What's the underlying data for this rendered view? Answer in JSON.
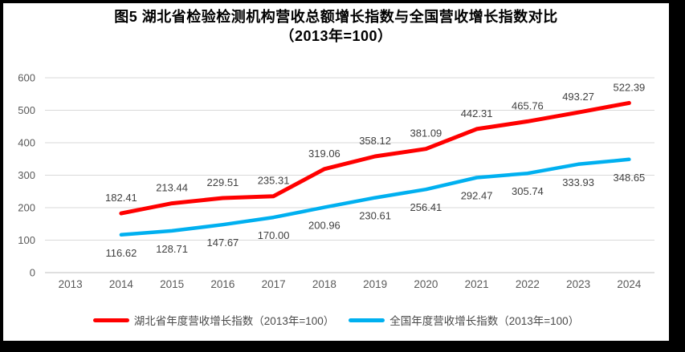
{
  "chart_data": {
    "type": "line",
    "title": "图5 湖北省检验检测机构营收总额增长指数与全国营收增长指数对比",
    "subtitle": "（2013年=100）",
    "categories": [
      "2013",
      "2014",
      "2015",
      "2016",
      "2017",
      "2018",
      "2019",
      "2020",
      "2021",
      "2022",
      "2023",
      "2024"
    ],
    "series": [
      {
        "name": "湖北省年度营收增长指数（2013年=100）",
        "color": "#FF0000",
        "label_position": "above",
        "values": [
          null,
          182.41,
          213.44,
          229.51,
          235.31,
          319.06,
          358.12,
          381.09,
          442.31,
          465.76,
          493.27,
          522.39
        ]
      },
      {
        "name": "全国年度营收增长指数（2013年=100）",
        "color": "#00B0F0",
        "label_position": "below",
        "values": [
          null,
          116.62,
          128.71,
          147.67,
          170.0,
          200.96,
          230.61,
          256.41,
          292.47,
          305.74,
          333.93,
          348.65
        ]
      }
    ],
    "ylim": [
      0,
      600
    ],
    "ytick_step": 100,
    "yticks": [
      "0",
      "100",
      "200",
      "300",
      "400",
      "500",
      "600"
    ],
    "grid": true,
    "legend_position": "bottom",
    "data_labels_decimals": 2
  },
  "colors": {
    "hubei_line": "#FF0000",
    "national_line": "#00B0F0",
    "grid": "#D9D9D9",
    "axis": "#BFBFBF",
    "tick_label": "#595959",
    "data_label": "#404040",
    "title": "#000000",
    "frame": "#000000",
    "background": "#FFFFFF"
  }
}
